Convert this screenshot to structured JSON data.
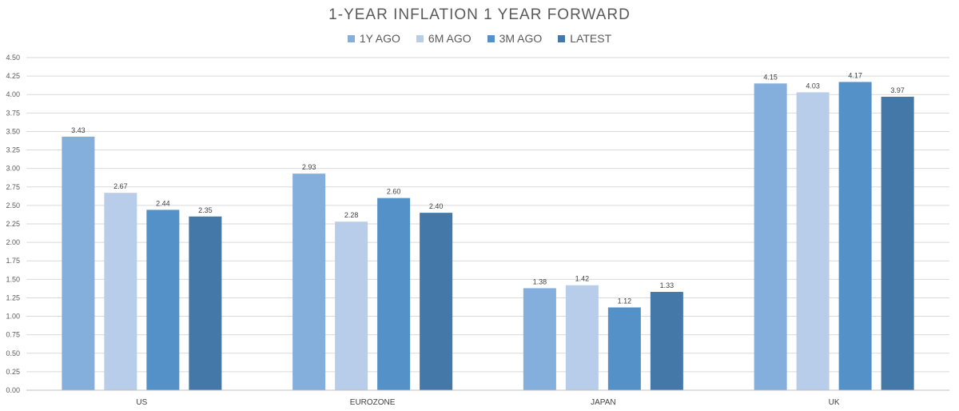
{
  "chart_data": {
    "type": "bar",
    "title": "1-YEAR INFLATION 1 YEAR FORWARD",
    "categories": [
      "US",
      "EUROZONE",
      "JAPAN",
      "UK"
    ],
    "series": [
      {
        "name": "1Y AGO",
        "color": "#84AEDC",
        "values": [
          3.43,
          2.93,
          1.38,
          4.15
        ]
      },
      {
        "name": "6M AGO",
        "color": "#B8CDE9",
        "values": [
          2.67,
          2.28,
          1.42,
          4.03
        ]
      },
      {
        "name": "3M AGO",
        "color": "#5591C9",
        "values": [
          2.44,
          2.6,
          1.12,
          4.17
        ]
      },
      {
        "name": "LATEST",
        "color": "#4378A8",
        "values": [
          2.35,
          2.4,
          1.33,
          3.97
        ]
      }
    ],
    "ylim": [
      0,
      4.5
    ],
    "yticks": [
      "0.00",
      "0.25",
      "0.50",
      "0.75",
      "1.00",
      "1.25",
      "1.50",
      "1.75",
      "2.00",
      "2.25",
      "2.50",
      "2.75",
      "3.00",
      "3.25",
      "3.50",
      "3.75",
      "4.00",
      "4.25",
      "4.50"
    ],
    "grid": true,
    "legend_position": "top-center",
    "xlabel": "",
    "ylabel": ""
  }
}
